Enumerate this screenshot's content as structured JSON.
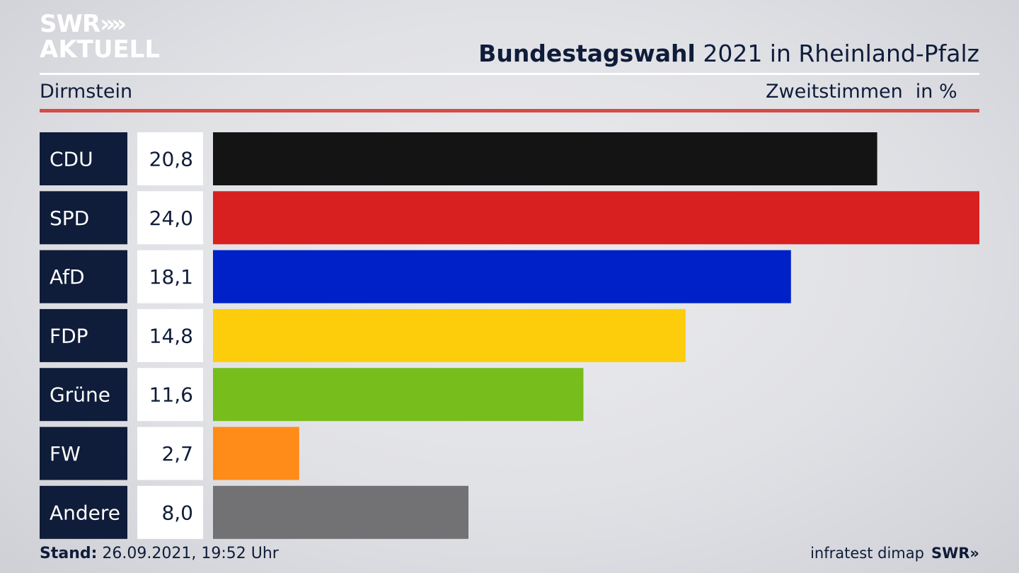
{
  "header": {
    "logo_line1": "SWR",
    "logo_chevrons": "»",
    "logo_line2": "AKTUELL",
    "title_bold": "Bundestagswahl",
    "title_rest": "2021 in Rheinland-Pfalz",
    "location": "Dirmstein",
    "measure": "Zweitstimmen",
    "unit": "in %"
  },
  "chart_data": {
    "type": "bar",
    "orientation": "horizontal",
    "categories": [
      "CDU",
      "SPD",
      "AfD",
      "FDP",
      "Grüne",
      "FW",
      "Andere"
    ],
    "values": [
      20.8,
      24.0,
      18.1,
      14.8,
      11.6,
      2.7,
      8.0
    ],
    "value_labels": [
      "20,8",
      "24,0",
      "18,1",
      "14,8",
      "11,6",
      "2,7",
      "8,0"
    ],
    "colors": [
      "#141414",
      "#d82020",
      "#0020c8",
      "#fdcd0c",
      "#77bd1c",
      "#ff8c18",
      "#727274"
    ],
    "xlim": [
      0,
      24.0
    ],
    "grid": false
  },
  "footer": {
    "stand_label": "Stand:",
    "stand_value": "26.09.2021, 19:52 Uhr",
    "source": "infratest dimap",
    "brand": "SWR»"
  }
}
